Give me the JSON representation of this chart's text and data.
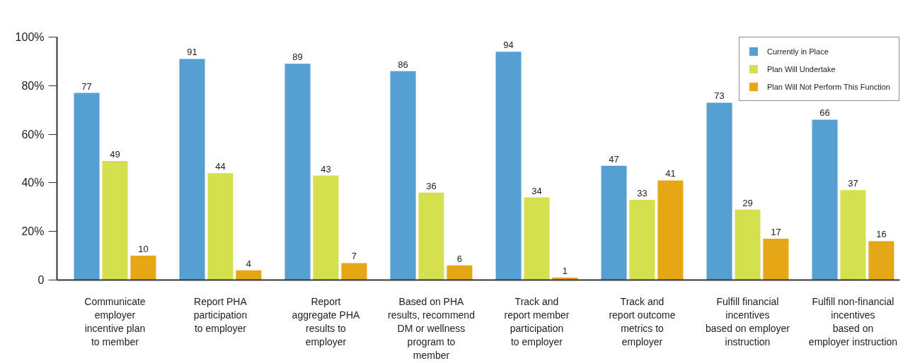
{
  "chart_data": {
    "type": "bar",
    "categories": [
      "Communicate\nemployer\nincentive plan\nto member",
      "Report PHA\nparticipation\nto employer",
      "Report\naggregate PHA\nresults to\nemployer",
      "Based on PHA\nresults, recommend\nDM or wellness\nprogram to\nmember",
      "Track and\nreport member\nparticipation\nto employer",
      "Track and\nreport outcome\nmetrics to\nemployer",
      "Fulfill financial\nincentives\nbased on employer\ninstruction",
      "Fulfill non-financial\nincentives\nbased on\nemployer instruction"
    ],
    "series": [
      {
        "name": "Currently in Place",
        "color": "#569fd3",
        "values": [
          77,
          91,
          89,
          86,
          94,
          47,
          73,
          66
        ]
      },
      {
        "name": "Plan Will Undertake",
        "color": "#d5e04e",
        "values": [
          49,
          44,
          43,
          36,
          34,
          33,
          29,
          37
        ]
      },
      {
        "name": "Plan Will Not Perform This Function",
        "color": "#e6a717",
        "values": [
          10,
          4,
          7,
          6,
          1,
          41,
          17,
          16
        ]
      }
    ],
    "ylim": [
      0,
      100
    ],
    "yticks": [
      0,
      {
        "value": 20,
        "label": "20%"
      },
      {
        "value": 40,
        "label": "40%"
      },
      {
        "value": 60,
        "label": "60%"
      },
      {
        "value": 80,
        "label": "80%"
      },
      {
        "value": 100,
        "label": "100%"
      }
    ],
    "data_labels": true,
    "grid": false,
    "legend": "top right"
  }
}
